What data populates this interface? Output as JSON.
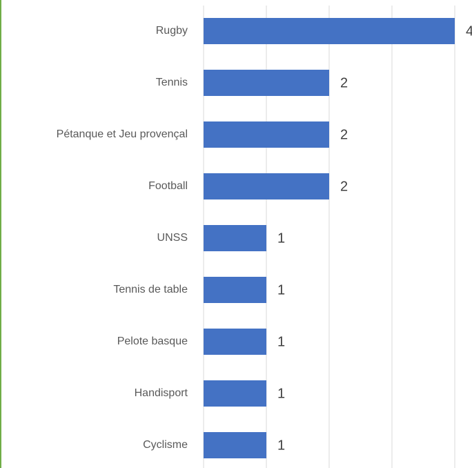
{
  "chart_data": {
    "type": "bar",
    "orientation": "horizontal",
    "categories": [
      "Rugby",
      "Tennis",
      "Pétanque et Jeu provençal",
      "Football",
      "UNSS",
      "Tennis de table",
      "Pelote basque",
      "Handisport",
      "Cyclisme"
    ],
    "values": [
      4,
      2,
      2,
      2,
      1,
      1,
      1,
      1,
      1
    ],
    "color": "#4472c4",
    "xlim": [
      0,
      4
    ],
    "xticks": [
      0,
      1,
      2,
      3,
      4
    ],
    "grid": true
  }
}
